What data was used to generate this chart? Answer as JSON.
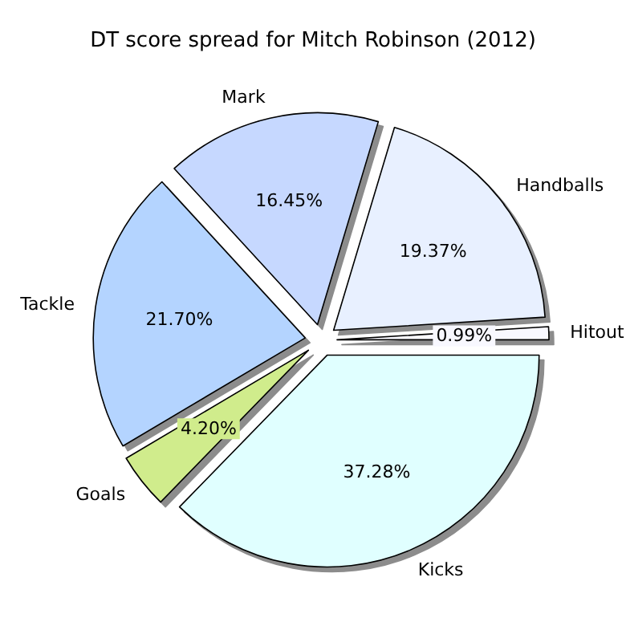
{
  "chart_data": {
    "type": "pie",
    "title": "DT score spread for Mitch Robinson (2012)",
    "categories": [
      "Hitout",
      "Handballs",
      "Mark",
      "Tackle",
      "Goals",
      "Kicks"
    ],
    "values": [
      0.99,
      19.37,
      16.45,
      21.7,
      4.2,
      37.28
    ],
    "colors": [
      "#f8f8ff",
      "#e8f0ff",
      "#c6d8ff",
      "#b4d4ff",
      "#d0ec8c",
      "#e0ffff"
    ],
    "value_labels": [
      "0.99%",
      "19.37%",
      "16.45%",
      "21.70%",
      "4.20%",
      "37.28%"
    ],
    "legend": false
  }
}
